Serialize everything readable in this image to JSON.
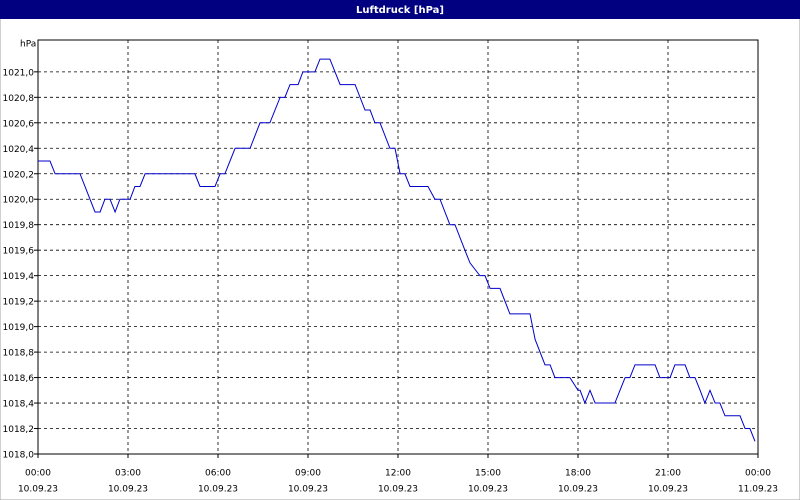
{
  "chart_data": {
    "type": "line",
    "title": "Luftdruck [hPa]",
    "y_unit": "hPa",
    "x": [
      0,
      0.4,
      0.57,
      1.4,
      1.9,
      2.07,
      2.23,
      2.4,
      2.57,
      2.73,
      3.07,
      3.23,
      3.4,
      3.57,
      5.23,
      5.4,
      5.9,
      6.07,
      6.23,
      6.57,
      7.07,
      7.4,
      7.73,
      8.07,
      8.23,
      8.4,
      8.67,
      8.83,
      9.23,
      9.4,
      9.73,
      10.07,
      10.57,
      10.9,
      11.07,
      11.23,
      11.4,
      11.73,
      11.9,
      12.07,
      12.23,
      12.4,
      13.0,
      13.23,
      13.4,
      13.73,
      13.9,
      14.23,
      14.4,
      14.73,
      14.9,
      15.07,
      15.4,
      15.73,
      16.4,
      16.57,
      16.9,
      17.07,
      17.23,
      17.73,
      18.0,
      18.07,
      18.23,
      18.4,
      18.57,
      19.23,
      19.57,
      19.73,
      19.9,
      20.57,
      20.73,
      21.07,
      21.23,
      21.57,
      21.73,
      21.9,
      22.07,
      22.23,
      22.4,
      22.57,
      22.73,
      22.9,
      23.4,
      23.57,
      23.73,
      23.9
    ],
    "series": [
      {
        "name": "Luftdruck",
        "color": "#0000cc",
        "values": [
          1020.3,
          1020.3,
          1020.2,
          1020.2,
          1019.9,
          1019.9,
          1020.0,
          1020.0,
          1019.9,
          1020.0,
          1020.0,
          1020.1,
          1020.1,
          1020.2,
          1020.2,
          1020.1,
          1020.1,
          1020.2,
          1020.2,
          1020.4,
          1020.4,
          1020.6,
          1020.6,
          1020.8,
          1020.8,
          1020.9,
          1020.9,
          1021.0,
          1021.0,
          1021.1,
          1021.1,
          1020.9,
          1020.9,
          1020.7,
          1020.7,
          1020.6,
          1020.6,
          1020.4,
          1020.4,
          1020.2,
          1020.2,
          1020.1,
          1020.1,
          1020.0,
          1020.0,
          1019.8,
          1019.8,
          1019.6,
          1019.5,
          1019.4,
          1019.4,
          1019.3,
          1019.3,
          1019.1,
          1019.1,
          1018.9,
          1018.7,
          1018.7,
          1018.6,
          1018.6,
          1018.5,
          1018.5,
          1018.4,
          1018.5,
          1018.4,
          1018.4,
          1018.6,
          1018.6,
          1018.7,
          1018.7,
          1018.6,
          1018.6,
          1018.7,
          1018.7,
          1018.6,
          1018.6,
          1018.5,
          1018.4,
          1018.5,
          1018.4,
          1018.4,
          1018.3,
          1018.3,
          1018.2,
          1018.2,
          1018.1
        ]
      }
    ],
    "xlim": [
      0,
      24
    ],
    "xticks": [
      {
        "value": 0,
        "label": "00:00"
      },
      {
        "value": 3,
        "label": "03:00"
      },
      {
        "value": 6,
        "label": "06:00"
      },
      {
        "value": 9,
        "label": "09:00"
      },
      {
        "value": 12,
        "label": "12:00"
      },
      {
        "value": 15,
        "label": "15:00"
      },
      {
        "value": 18,
        "label": "18:00"
      },
      {
        "value": 21,
        "label": "21:00"
      },
      {
        "value": 24,
        "label": "00:00"
      }
    ],
    "xtick_dates": [
      "10.09.23",
      "10.09.23",
      "10.09.23",
      "10.09.23",
      "10.09.23",
      "10.09.23",
      "10.09.23",
      "10.09.23",
      "11.09.23"
    ],
    "ylim": [
      1018,
      1021.25
    ],
    "yticks": [
      {
        "value": 1018.0,
        "label": "1018,0"
      },
      {
        "value": 1018.2,
        "label": "1018,2"
      },
      {
        "value": 1018.4,
        "label": "1018,4"
      },
      {
        "value": 1018.6,
        "label": "1018,6"
      },
      {
        "value": 1018.8,
        "label": "1018,8"
      },
      {
        "value": 1019.0,
        "label": "1019,0"
      },
      {
        "value": 1019.2,
        "label": "1019,2"
      },
      {
        "value": 1019.4,
        "label": "1019,4"
      },
      {
        "value": 1019.6,
        "label": "1019,6"
      },
      {
        "value": 1019.8,
        "label": "1019,8"
      },
      {
        "value": 1020.0,
        "label": "1020,0"
      },
      {
        "value": 1020.2,
        "label": "1020,2"
      },
      {
        "value": 1020.4,
        "label": "1020,4"
      },
      {
        "value": 1020.6,
        "label": "1020,6"
      },
      {
        "value": 1020.8,
        "label": "1020,8"
      },
      {
        "value": 1021.0,
        "label": "1021,0"
      }
    ],
    "grid": true
  }
}
